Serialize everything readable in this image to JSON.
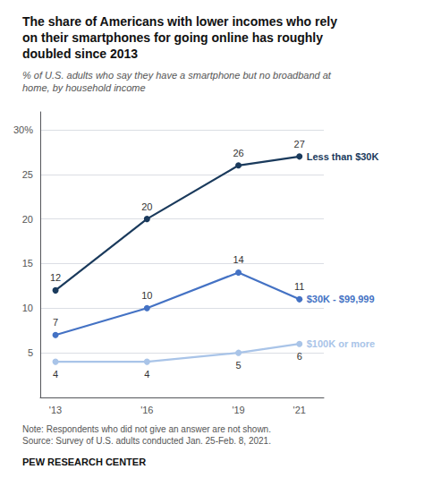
{
  "chart_data": {
    "type": "line",
    "title": "The share of Americans with lower incomes who rely\non their smartphones for going online has roughly\ndoubled since 2013",
    "subtitle": "% of U.S. adults who say they have a smartphone but no broadband at\nhome, by household income",
    "annotations": [
      "Note: Respondents who did not give an answer are not shown.\nSource: Survey of U.S. adults conducted Jan. 25-Feb. 8, 2021.",
      "PEW RESEARCH CENTER"
    ],
    "x": [
      2013,
      2016,
      2019,
      2021
    ],
    "series": [
      {
        "name": "Less than $30K",
        "color": "#1a3a5c",
        "values": [
          12,
          20,
          26,
          27
        ]
      },
      {
        "name": "$30K - $99,999",
        "color": "#4472c4",
        "values": [
          7,
          10,
          14,
          11
        ]
      },
      {
        "name": "$100K or more",
        "color": "#a9c4e8",
        "values": [
          4,
          4,
          5,
          6
        ]
      }
    ],
    "xlim": [
      2012.5,
      2021.8
    ],
    "xticks": [
      {
        "value": 2013,
        "label": "'13"
      },
      {
        "value": 2016,
        "label": "'16"
      },
      {
        "value": 2019,
        "label": "'19"
      },
      {
        "value": 2021,
        "label": "'21"
      }
    ],
    "ylim": [
      0,
      32
    ],
    "yticks": [
      {
        "value": 0,
        "label": null
      },
      5,
      10,
      15,
      20,
      25,
      {
        "value": 30,
        "label": "30%"
      }
    ],
    "grid": true,
    "data_labels": true,
    "marker": "circle"
  }
}
